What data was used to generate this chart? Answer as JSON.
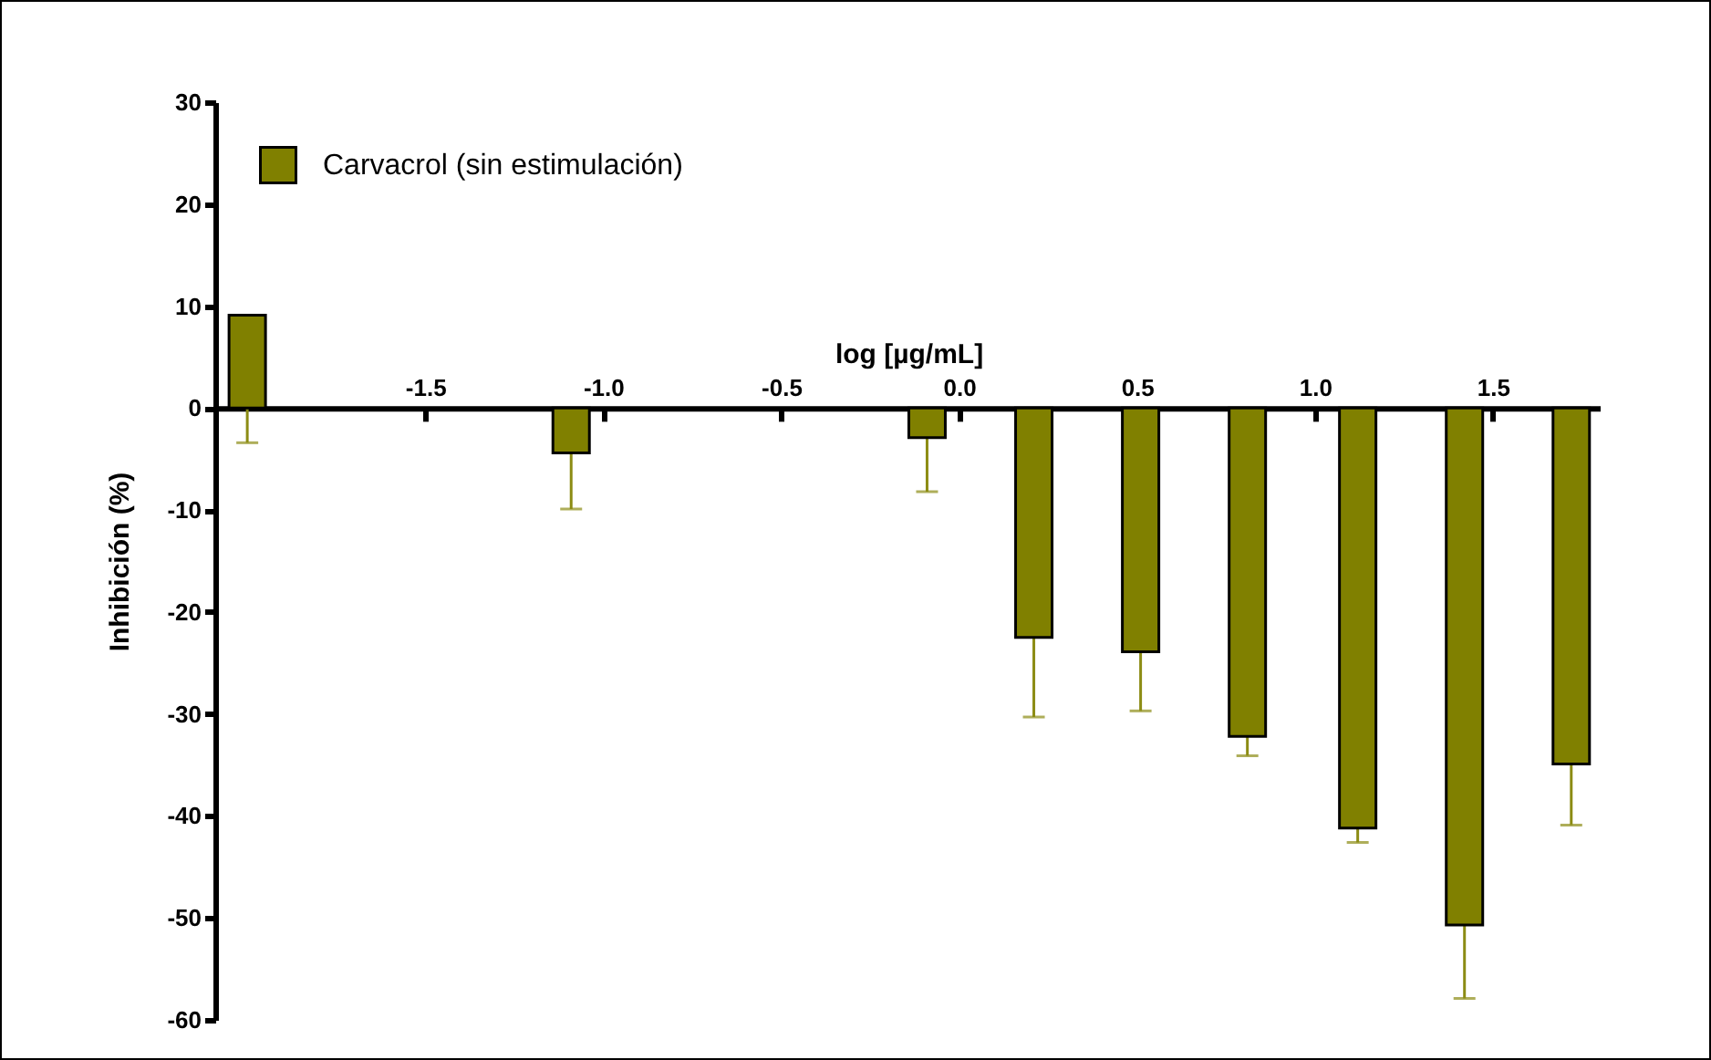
{
  "chart_data": {
    "type": "bar",
    "xlabel": "log [µg/mL]",
    "ylabel": "Inhibición (%)",
    "x": [
      -2.0,
      -1.09,
      -0.09,
      0.21,
      0.51,
      0.81,
      1.12,
      1.42,
      1.72
    ],
    "series": [
      {
        "name": "Carvacrol (sin estimulación)",
        "color": "#808000",
        "values": [
          9.1,
          -4.4,
          -2.9,
          -22.5,
          -23.9,
          -32.2,
          -41.2,
          -50.7,
          -34.9
        ],
        "errors": [
          [
            -3.4,
            9.1
          ],
          [
            -9.9,
            -4.4
          ],
          [
            -8.2,
            -2.9
          ],
          [
            -30.3,
            -22.5
          ],
          [
            -29.7,
            -23.9
          ],
          [
            -34.1,
            -32.2
          ],
          [
            -42.6,
            -41.2
          ],
          [
            -57.9,
            -50.7
          ],
          [
            -40.9,
            -34.9
          ]
        ]
      }
    ],
    "xlim": [
      -2.09,
      1.8
    ],
    "xticks": [
      {
        "value": -1.5,
        "label": "-1.5"
      },
      {
        "value": -1.0,
        "label": "-1.0"
      },
      {
        "value": -0.5,
        "label": "-0.5"
      },
      {
        "value": 0.0,
        "label": "0.0"
      },
      {
        "value": 0.5,
        "label": "0.5"
      },
      {
        "value": 1.0,
        "label": "1.0"
      },
      {
        "value": 1.5,
        "label": "1.5"
      }
    ],
    "ylim": [
      -60,
      30
    ],
    "yticks": [
      -60,
      -50,
      -40,
      -30,
      -20,
      -10,
      0,
      10,
      20,
      30
    ],
    "legend": "top left",
    "grid": false
  }
}
